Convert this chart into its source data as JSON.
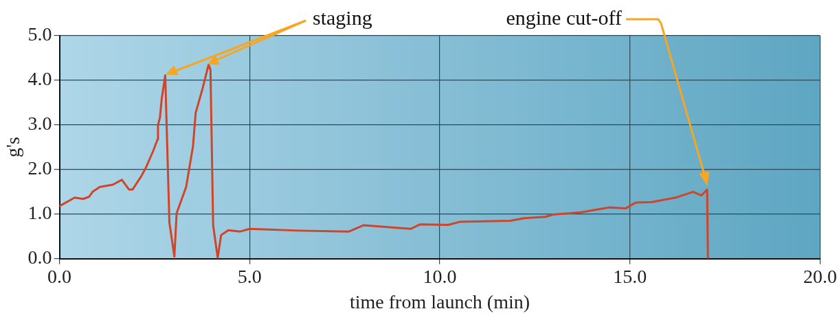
{
  "chart_data": {
    "type": "line",
    "xlabel": "time from launch (min)",
    "ylabel": "g's",
    "xlim": [
      0,
      20
    ],
    "xticks": [
      {
        "value": 0,
        "label": "0.0"
      },
      {
        "value": 5,
        "label": "5.0"
      },
      {
        "value": 10,
        "label": "10.0"
      },
      {
        "value": 15,
        "label": "15.0"
      },
      {
        "value": 20,
        "label": "20.0"
      }
    ],
    "ylim": [
      0,
      5
    ],
    "yticks": [
      {
        "value": 0,
        "label": "0.0"
      },
      {
        "value": 1,
        "label": "1.0"
      },
      {
        "value": 2,
        "label": "2.0"
      },
      {
        "value": 3,
        "label": "3.0"
      },
      {
        "value": 4,
        "label": "4.0"
      },
      {
        "value": 5,
        "label": "5.0"
      }
    ],
    "grid": true,
    "legend": false,
    "marker": "none",
    "line_style": "solid",
    "series": [
      {
        "color": "#d0442a",
        "x": [
          0,
          0.4,
          0.62,
          0.78,
          0.87,
          1.06,
          1.4,
          1.64,
          1.83,
          1.92,
          2.15,
          2.27,
          2.46,
          2.58,
          2.59,
          2.64,
          2.69,
          2.78,
          2.89,
          3.02,
          3.08,
          3.33,
          3.51,
          3.58,
          3.76,
          3.92,
          3.97,
          4.04,
          4.16,
          4.25,
          4.44,
          4.75,
          5.0,
          6.31,
          7.61,
          7.99,
          9.23,
          9.48,
          10.22,
          10.54,
          11.85,
          12.22,
          12.78,
          12.97,
          13.71,
          14.46,
          14.89,
          15.15,
          15.58,
          16.2,
          16.66,
          16.88,
          17.03,
          17.05
        ],
        "values": [
          1.18,
          1.37,
          1.34,
          1.39,
          1.5,
          1.61,
          1.66,
          1.77,
          1.55,
          1.55,
          1.85,
          2.04,
          2.41,
          2.68,
          3.0,
          3.16,
          3.6,
          4.11,
          0.81,
          0.05,
          1.02,
          1.61,
          2.52,
          3.27,
          3.81,
          4.35,
          4.24,
          0.75,
          0.02,
          0.53,
          0.64,
          0.61,
          0.67,
          0.63,
          0.61,
          0.75,
          0.67,
          0.77,
          0.76,
          0.83,
          0.85,
          0.91,
          0.94,
          0.99,
          1.04,
          1.15,
          1.13,
          1.26,
          1.27,
          1.37,
          1.5,
          1.42,
          1.55,
          0.02
        ]
      }
    ],
    "annotations": [
      "staging",
      "engine cut-off"
    ]
  }
}
